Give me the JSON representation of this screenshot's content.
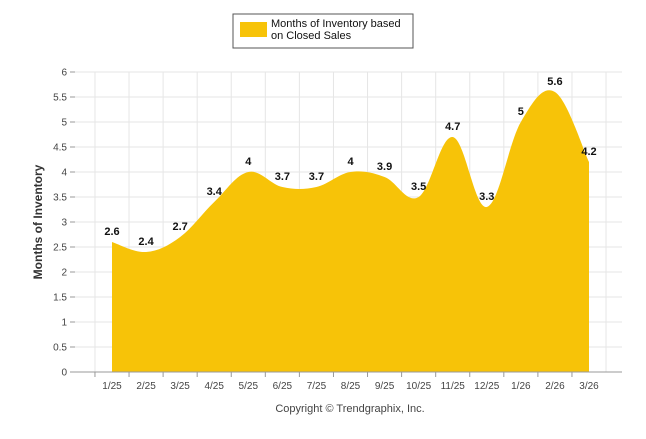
{
  "chart_data": {
    "type": "area",
    "title": "",
    "xlabel": "",
    "ylabel": "Months of Inventory",
    "ylim": [
      0,
      6
    ],
    "ytick_step": 0.5,
    "yticks": [
      "0",
      "0.5",
      "1",
      "1.5",
      "2",
      "2.5",
      "3",
      "3.5",
      "4",
      "4.5",
      "5",
      "5.5",
      "6"
    ],
    "categories": [
      "1/25",
      "2/25",
      "3/25",
      "4/25",
      "5/25",
      "6/25",
      "7/25",
      "8/25",
      "9/25",
      "10/25",
      "11/25",
      "12/25",
      "1/26",
      "2/26",
      "3/26"
    ],
    "series": [
      {
        "name": "Months of Inventory based on Closed Sales",
        "values": [
          2.6,
          2.4,
          2.7,
          3.4,
          4,
          3.7,
          3.7,
          4,
          3.9,
          3.5,
          4.7,
          3.3,
          5,
          5.6,
          4.2
        ],
        "labels": [
          "2.6",
          "2.4",
          "2.7",
          "3.4",
          "4",
          "3.7",
          "3.7",
          "4",
          "3.9",
          "3.5",
          "4.7",
          "3.3",
          "5",
          "5.6",
          "4.2"
        ],
        "color": "#F7C308"
      }
    ],
    "legend": {
      "line1": "Months of Inventory based",
      "line2": "on Closed Sales",
      "placement": "top-center"
    },
    "grid": true
  },
  "footer": {
    "copyright": "Copyright © Trendgraphix, Inc."
  },
  "colors": {
    "area": "#F7C308",
    "grid": "#e6e6e6",
    "axis": "#999999",
    "text": "#333333"
  }
}
